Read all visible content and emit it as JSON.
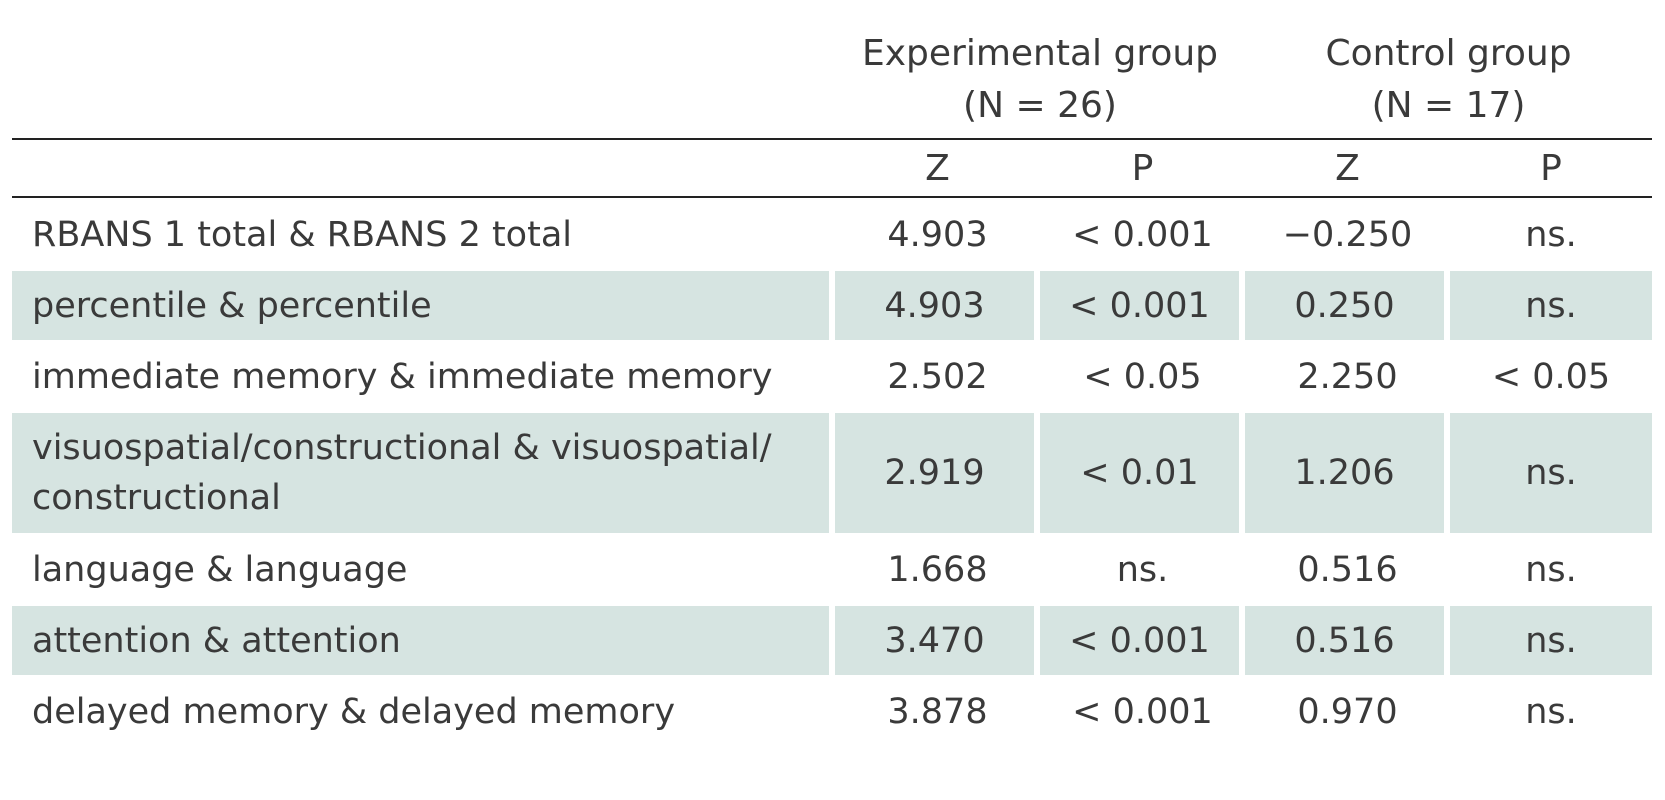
{
  "table": {
    "groups": [
      {
        "title": "Experimental group",
        "n": "(N = 26)"
      },
      {
        "title": "Control group",
        "n": "(N = 17)"
      }
    ],
    "subheaders": [
      "Z",
      "P",
      "Z",
      "P"
    ],
    "rows": [
      {
        "label": "RBANS 1 total & RBANS 2 total",
        "z1": "4.903",
        "p1": "< 0.001",
        "z2": "−0.250",
        "p2": "ns."
      },
      {
        "label": "percentile & percentile",
        "z1": "4.903",
        "p1": "< 0.001",
        "z2": "0.250",
        "p2": "ns."
      },
      {
        "label": "immediate memory & immediate memory",
        "z1": "2.502",
        "p1": "< 0.05",
        "z2": "2.250",
        "p2": "< 0.05"
      },
      {
        "label": "visuospatial/constructional & visuospatial/ constructional",
        "z1": "2.919",
        "p1": "< 0.01",
        "z2": "1.206",
        "p2": "ns."
      },
      {
        "label": "language & language",
        "z1": "1.668",
        "p1": "ns.",
        "z2": "0.516",
        "p2": "ns."
      },
      {
        "label": "attention & attention",
        "z1": "3.470",
        "p1": "< 0.001",
        "z2": "0.516",
        "p2": "ns."
      },
      {
        "label": "delayed memory & delayed memory",
        "z1": "3.878",
        "p1": "< 0.001",
        "z2": "0.970",
        "p2": "ns."
      }
    ]
  },
  "colors": {
    "shade": "#d6e4e1",
    "text": "#3a3a3a",
    "rule": "#222222"
  }
}
